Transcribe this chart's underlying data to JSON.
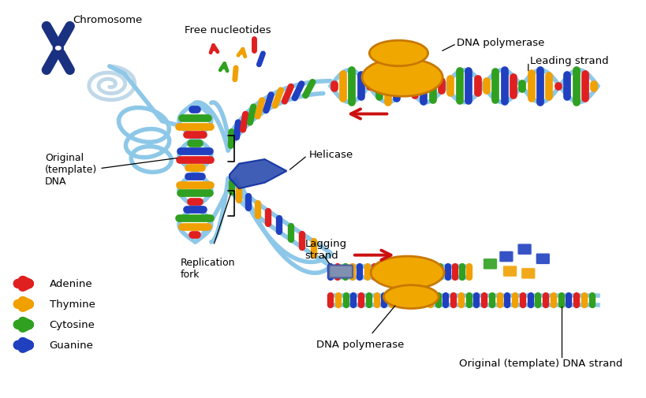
{
  "background_color": "#ffffff",
  "labels": {
    "chromosome": "Chromosome",
    "original_template": "Original\n(template)\nDNA",
    "replication_fork": "Replication\nfork",
    "free_nucleotides": "Free nucleotides",
    "dna_polymerase_top": "DNA polymerase",
    "leading_strand": "Leading strand",
    "helicase": "Helicase",
    "lagging_strand": "Lagging\nstrand",
    "dna_polymerase_bottom": "DNA polymerase",
    "original_template_strand": "Original (template) DNA strand"
  },
  "legend": [
    {
      "label": "Adenine",
      "color": "#e02020"
    },
    {
      "label": "Thymine",
      "color": "#f0a000"
    },
    {
      "label": "Cytosine",
      "color": "#30a020"
    },
    {
      "label": "Guanine",
      "color": "#2040c0"
    }
  ],
  "colors": {
    "adenine": "#e02020",
    "thymine": "#f0a000",
    "cytosine": "#30a020",
    "guanine": "#2040c0",
    "backbone": "#8ec8e8",
    "backbone2": "#6ab0d8",
    "polymerase_fill": "#f0a800",
    "polymerase_edge": "#c87800",
    "helicase_fill": "#3050b0",
    "helicase_edge": "#1030a0",
    "arrow_red": "#cc1010",
    "chrom_fill": "#1a3080",
    "chrom_edge": "#0a1850",
    "primer_fill": "#8090b0",
    "primer_edge": "#5060a0"
  }
}
